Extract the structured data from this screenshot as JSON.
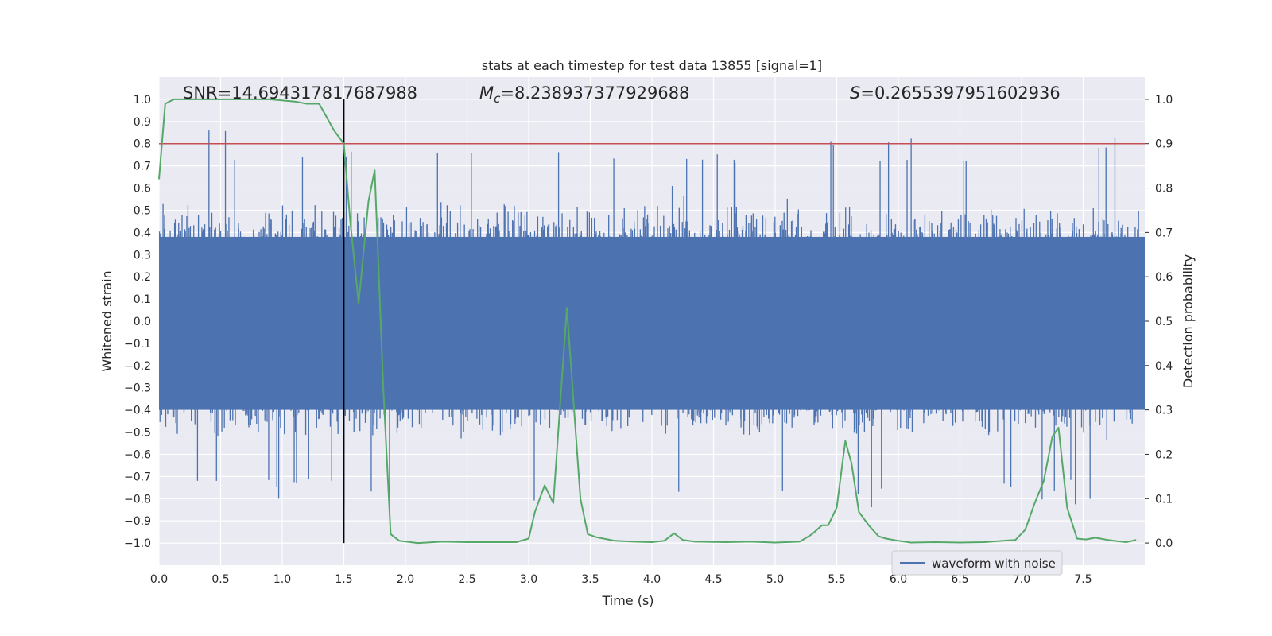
{
  "chart_data": {
    "type": "line",
    "title": "stats at each timestep for test data 13855 [signal=1]",
    "xlabel": "Time (s)",
    "ylabel": "Whitened strain",
    "y2label": "Detection probability",
    "xlim": [
      0,
      8
    ],
    "ylim": [
      -1.1,
      1.1
    ],
    "y2lim": [
      -0.05,
      1.05
    ],
    "xticks": [
      "0.0",
      "0.5",
      "1.0",
      "1.5",
      "2.0",
      "2.5",
      "3.0",
      "3.5",
      "4.0",
      "4.5",
      "5.0",
      "5.5",
      "6.0",
      "6.5",
      "7.0",
      "7.5"
    ],
    "yticks": [
      "1.0",
      "0.9",
      "0.8",
      "0.7",
      "0.6",
      "0.5",
      "0.4",
      "0.3",
      "0.2",
      "0.1",
      "0.0",
      "−0.1",
      "−0.2",
      "−0.3",
      "−0.4",
      "−0.5",
      "−0.6",
      "−0.7",
      "−0.8",
      "−0.9",
      "−1.0"
    ],
    "y2ticks": [
      "1.0",
      "0.9",
      "0.8",
      "0.7",
      "0.6",
      "0.5",
      "0.4",
      "0.3",
      "0.2",
      "0.1",
      "0.0"
    ],
    "grid": true,
    "legend": {
      "position": "lower-right",
      "entries": [
        "waveform with noise"
      ]
    },
    "annotations": {
      "snr": "SNR=14.694317817687988",
      "mc_symbol": "M",
      "mc_sub": "c",
      "mc_value": "=8.238937377929688",
      "s_symbol": "S",
      "s_value": "=0.2655397951602936"
    },
    "threshold": {
      "y2": 0.9,
      "color": "#c44e52"
    },
    "marker_time": 1.5,
    "waveform": {
      "name": "waveform with noise",
      "color": "#4c72b0",
      "band": [
        -0.4,
        0.38
      ],
      "note": "dense noisy strain trace sampled across 0-8 s"
    },
    "detection_probability": {
      "color": "#55a868",
      "t": [
        0.0,
        0.05,
        0.12,
        0.2,
        0.3,
        0.5,
        0.7,
        0.9,
        1.1,
        1.2,
        1.3,
        1.42,
        1.5,
        1.55,
        1.62,
        1.7,
        1.75,
        1.82,
        1.88,
        1.95,
        2.1,
        2.3,
        2.5,
        2.7,
        2.9,
        3.0,
        3.05,
        3.13,
        3.2,
        3.31,
        3.42,
        3.48,
        3.55,
        3.7,
        3.85,
        4.0,
        4.1,
        4.18,
        4.25,
        4.35,
        4.6,
        4.8,
        5.0,
        5.2,
        5.3,
        5.38,
        5.43,
        5.5,
        5.57,
        5.62,
        5.68,
        5.76,
        5.84,
        5.9,
        6.0,
        6.1,
        6.3,
        6.5,
        6.7,
        6.85,
        6.95,
        7.03,
        7.1,
        7.18,
        7.25,
        7.3,
        7.37,
        7.45,
        7.52,
        7.6,
        7.7,
        7.78,
        7.85,
        7.93
      ],
      "p": [
        0.82,
        0.99,
        1.0,
        1.0,
        1.0,
        1.0,
        1.0,
        1.0,
        0.995,
        0.99,
        0.99,
        0.93,
        0.9,
        0.73,
        0.54,
        0.77,
        0.84,
        0.35,
        0.02,
        0.005,
        0.0,
        0.003,
        0.002,
        0.002,
        0.002,
        0.01,
        0.07,
        0.13,
        0.09,
        0.53,
        0.1,
        0.02,
        0.013,
        0.005,
        0.003,
        0.002,
        0.005,
        0.022,
        0.007,
        0.003,
        0.002,
        0.003,
        0.001,
        0.003,
        0.02,
        0.04,
        0.04,
        0.08,
        0.23,
        0.18,
        0.07,
        0.04,
        0.015,
        0.01,
        0.005,
        0.001,
        0.002,
        0.001,
        0.002,
        0.005,
        0.007,
        0.03,
        0.085,
        0.14,
        0.24,
        0.26,
        0.08,
        0.01,
        0.008,
        0.012,
        0.007,
        0.004,
        0.002,
        0.007
      ]
    }
  }
}
